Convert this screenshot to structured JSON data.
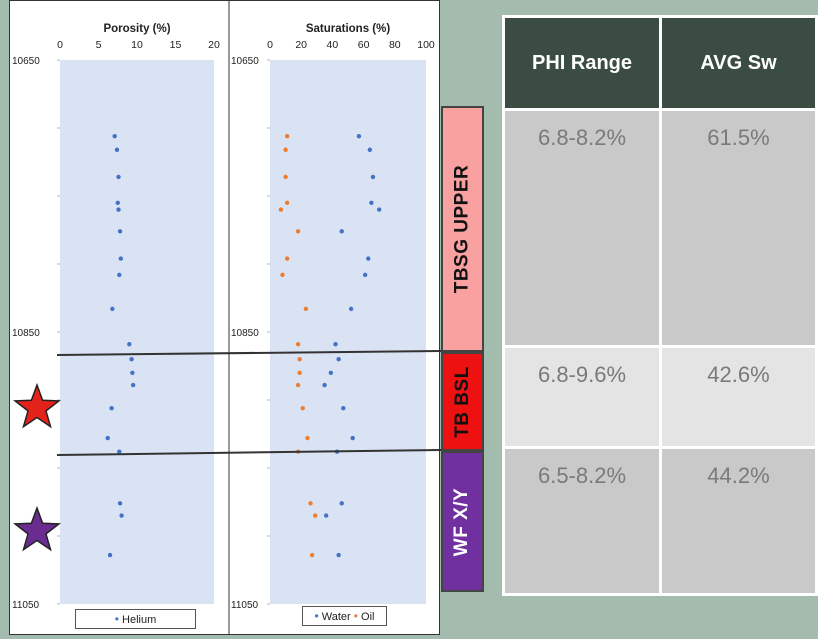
{
  "well_log": {
    "porosity_track": {
      "title": "Porosity (%)",
      "ticks": [
        "0",
        "5",
        "10",
        "15",
        "20"
      ],
      "legend": "Helium"
    },
    "saturation_track": {
      "title": "Saturations (%)",
      "ticks": [
        "0",
        "20",
        "40",
        "60",
        "80",
        "100"
      ],
      "legend_water": "Water",
      "legend_oil": "Oil"
    },
    "depth_labels": [
      "10650",
      "10850",
      "11050"
    ]
  },
  "zones": [
    {
      "label": "TBSG UPPER",
      "color": "#f9a0a0"
    },
    {
      "label": "TB BSL",
      "color": "#ee1111"
    },
    {
      "label": "WF X/Y",
      "color": "#7030a0"
    }
  ],
  "markers": [
    {
      "name": "red-star",
      "color": "#e3221c"
    },
    {
      "name": "purple-star",
      "color": "#6a2c91"
    }
  ],
  "summary_table": {
    "headers": [
      "PHI Range",
      "AVG Sw"
    ],
    "rows": [
      [
        "6.8-8.2%",
        "61.5%"
      ],
      [
        "6.8-9.6%",
        "42.6%"
      ],
      [
        "6.5-8.2%",
        "44.2%"
      ]
    ]
  },
  "chart_data": [
    {
      "type": "scatter",
      "title": "Porosity (%)",
      "xlabel": "Porosity (%)",
      "ylabel": "",
      "xlim": [
        0,
        20
      ],
      "ylim": [
        11050,
        10650
      ],
      "grid": false,
      "legend": "bottom",
      "series": [
        {
          "name": "Helium",
          "color": "#4472c4",
          "points": [
            [
              7.1,
              10706
            ],
            [
              7.4,
              10716
            ],
            [
              7.6,
              10736
            ],
            [
              7.5,
              10755
            ],
            [
              7.6,
              10760
            ],
            [
              7.8,
              10776
            ],
            [
              7.9,
              10796
            ],
            [
              7.7,
              10808
            ],
            [
              6.8,
              10833
            ],
            [
              9.0,
              10859
            ],
            [
              9.3,
              10870
            ],
            [
              9.4,
              10880
            ],
            [
              9.5,
              10889
            ],
            [
              6.7,
              10906
            ],
            [
              6.2,
              10928
            ],
            [
              7.7,
              10938
            ],
            [
              7.8,
              10976
            ],
            [
              8.0,
              10985
            ],
            [
              6.5,
              11014
            ]
          ]
        }
      ]
    },
    {
      "type": "scatter",
      "title": "Saturations (%)",
      "xlabel": "Saturations (%)",
      "ylabel": "",
      "xlim": [
        0,
        100
      ],
      "ylim": [
        11050,
        10650
      ],
      "grid": false,
      "legend": "bottom",
      "series": [
        {
          "name": "Water",
          "color": "#4472c4",
          "points": [
            [
              57,
              10706
            ],
            [
              64,
              10716
            ],
            [
              66,
              10736
            ],
            [
              65,
              10755
            ],
            [
              70,
              10760
            ],
            [
              46,
              10776
            ],
            [
              63,
              10796
            ],
            [
              61,
              10808
            ],
            [
              52,
              10833
            ],
            [
              42,
              10859
            ],
            [
              44,
              10870
            ],
            [
              39,
              10880
            ],
            [
              35,
              10889
            ],
            [
              47,
              10906
            ],
            [
              53,
              10928
            ],
            [
              43,
              10938
            ],
            [
              46,
              10976
            ],
            [
              36,
              10985
            ],
            [
              44,
              11014
            ]
          ]
        },
        {
          "name": "Oil",
          "color": "#ed7d31",
          "points": [
            [
              11,
              10706
            ],
            [
              10,
              10716
            ],
            [
              10,
              10736
            ],
            [
              11,
              10755
            ],
            [
              7,
              10760
            ],
            [
              18,
              10776
            ],
            [
              11,
              10796
            ],
            [
              8,
              10808
            ],
            [
              23,
              10833
            ],
            [
              18,
              10859
            ],
            [
              19,
              10870
            ],
            [
              19,
              10880
            ],
            [
              18,
              10889
            ],
            [
              21,
              10906
            ],
            [
              24,
              10928
            ],
            [
              18,
              10938
            ],
            [
              26,
              10976
            ],
            [
              29,
              10985
            ],
            [
              27,
              11014
            ]
          ]
        }
      ]
    }
  ]
}
